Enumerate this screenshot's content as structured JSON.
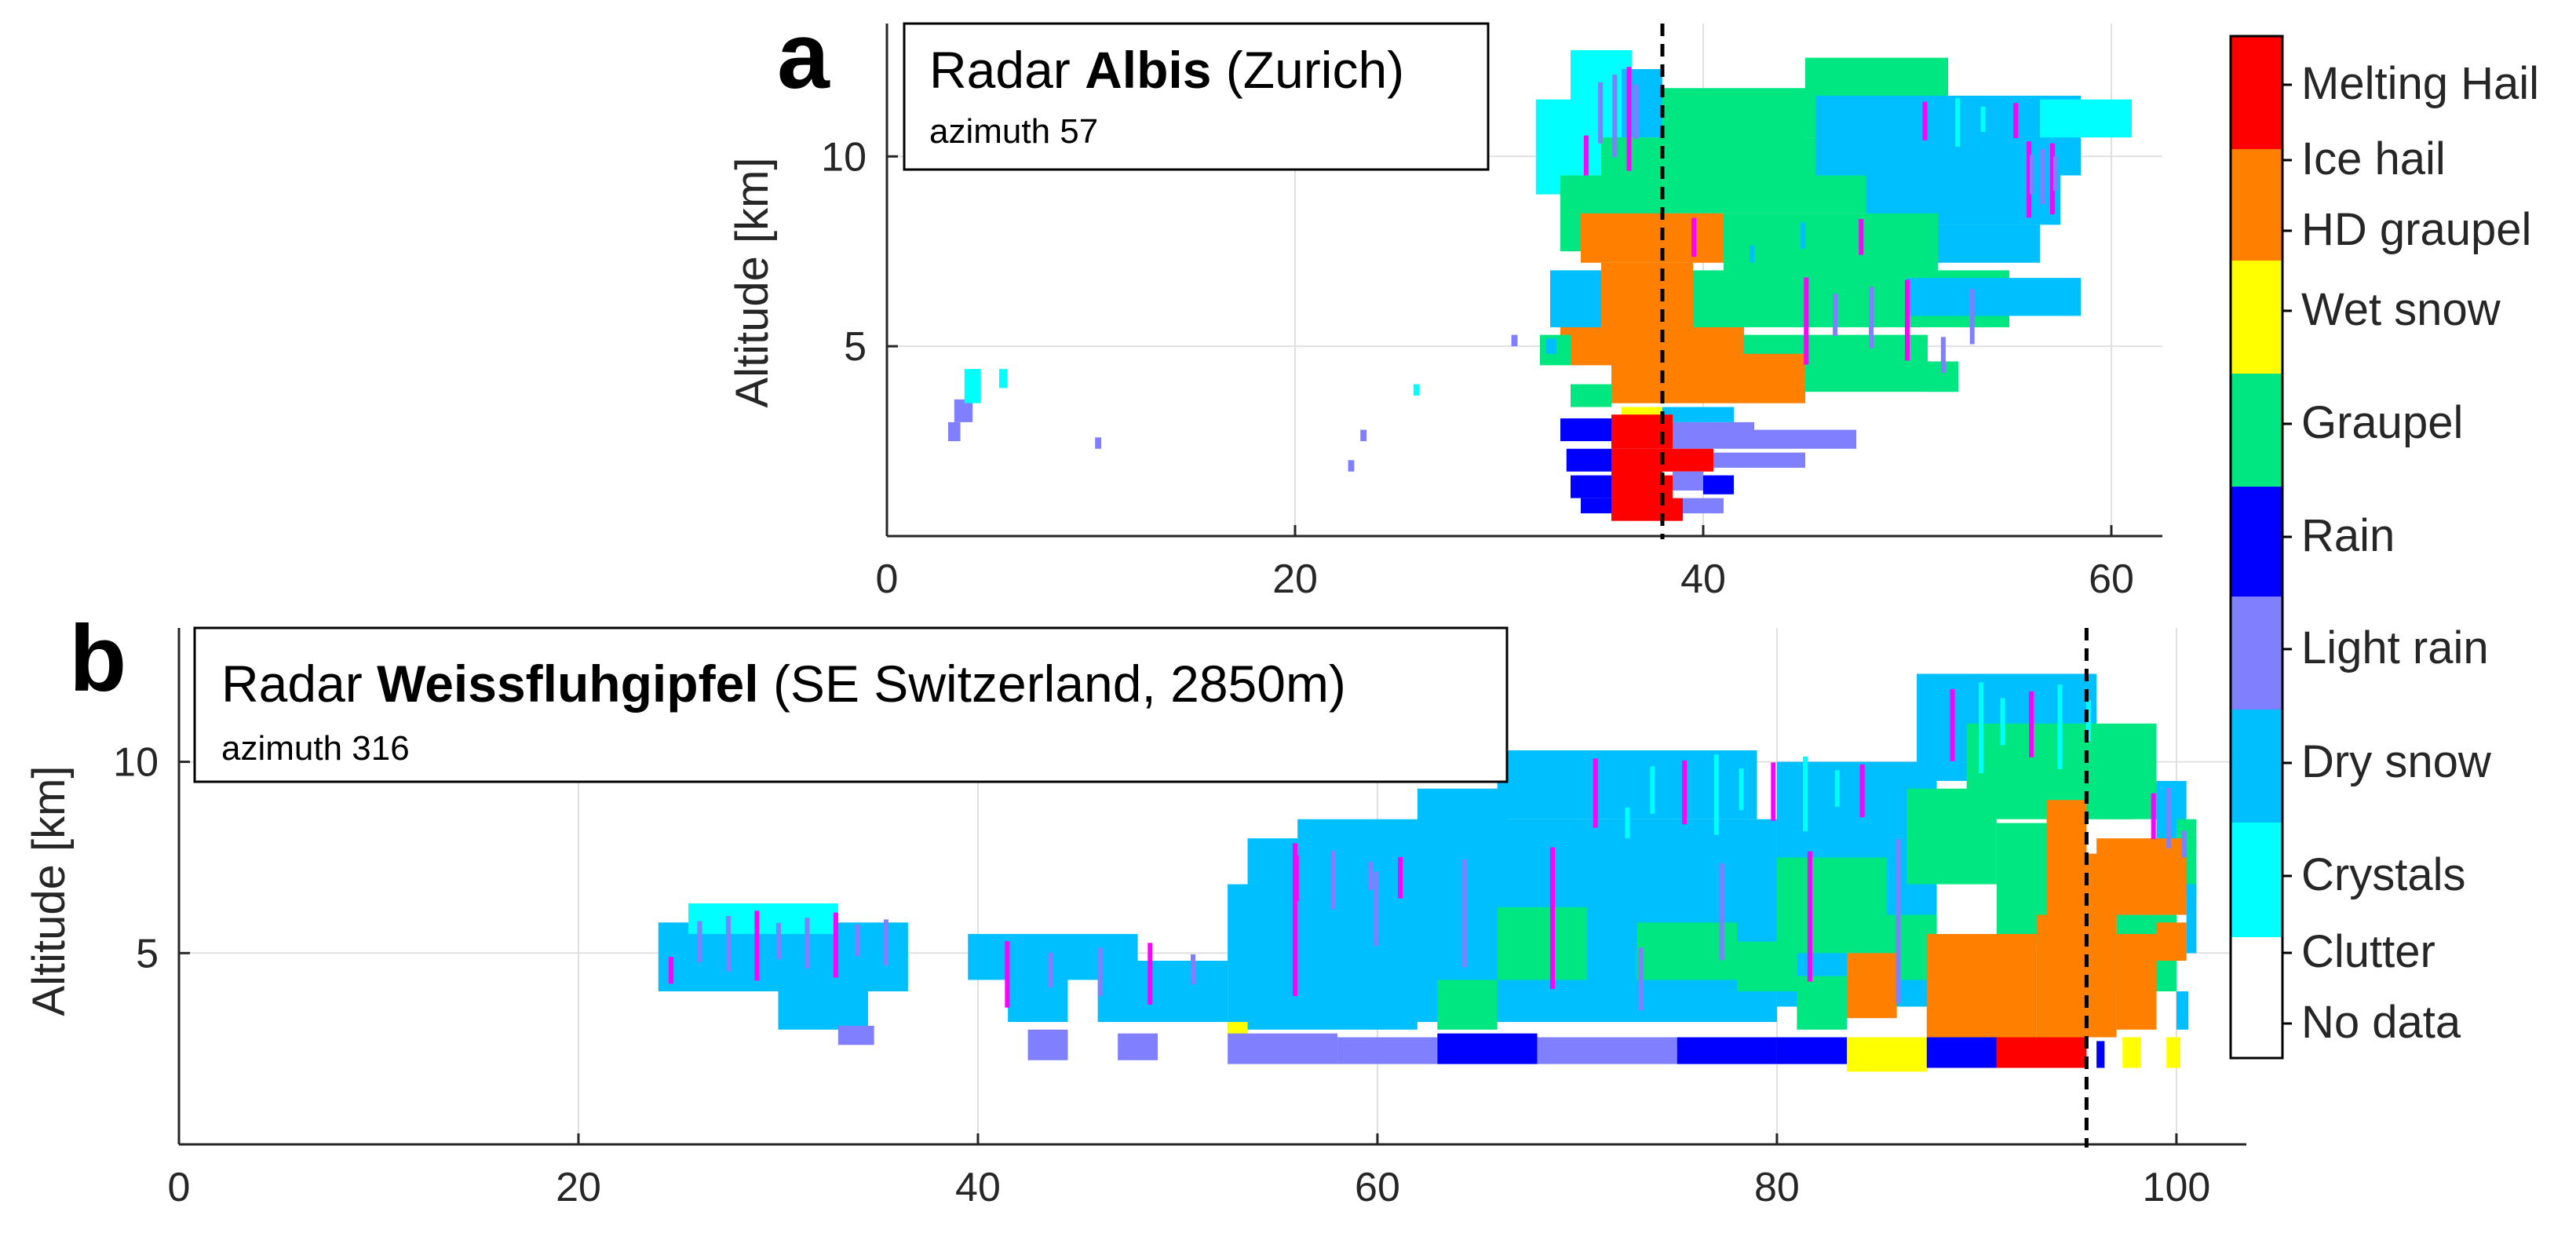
{
  "chart_data": [
    {
      "panel": "a",
      "type": "heatmap",
      "title_prefix": "Radar ",
      "title_bold": "Albis",
      "title_suffix": " (Zurich)",
      "subtitle": "azimuth 57",
      "ylabel": "Altitude [km]",
      "xlabel": "",
      "xlim": [
        0,
        62.5
      ],
      "ylim": [
        0,
        13.5
      ],
      "xticks": [
        0,
        20,
        40,
        60
      ],
      "yticks": [
        5,
        10
      ],
      "grid": true,
      "marker_line_x": 38,
      "cells": [
        {
          "x0": 31.8,
          "x1": 33.5,
          "y0": 9.0,
          "y1": 11.5,
          "cls": "Crystals"
        },
        {
          "x0": 33.5,
          "x1": 36.5,
          "y0": 9.5,
          "y1": 12.8,
          "cls": "Crystals"
        },
        {
          "x0": 36.0,
          "x1": 38.0,
          "y0": 10.5,
          "y1": 12.3,
          "cls": "Dry snow"
        },
        {
          "x0": 38.0,
          "x1": 45.0,
          "y0": 10.0,
          "y1": 11.8,
          "cls": "Graupel"
        },
        {
          "x0": 45.0,
          "x1": 52.0,
          "y0": 10.5,
          "y1": 12.6,
          "cls": "Graupel"
        },
        {
          "x0": 35.0,
          "x1": 48.0,
          "y0": 8.5,
          "y1": 10.5,
          "cls": "Graupel"
        },
        {
          "x0": 45.5,
          "x1": 58.5,
          "y0": 9.5,
          "y1": 11.6,
          "cls": "Dry snow"
        },
        {
          "x0": 56.5,
          "x1": 61.0,
          "y0": 10.5,
          "y1": 11.5,
          "cls": "Crystals"
        },
        {
          "x0": 48.0,
          "x1": 57.5,
          "y0": 8.2,
          "y1": 10.0,
          "cls": "Dry snow"
        },
        {
          "x0": 33.0,
          "x1": 38.0,
          "y0": 7.5,
          "y1": 9.5,
          "cls": "Graupel"
        },
        {
          "x0": 34.0,
          "x1": 41.0,
          "y0": 7.2,
          "y1": 8.5,
          "cls": "Ice hail"
        },
        {
          "x0": 41.0,
          "x1": 51.5,
          "y0": 6.8,
          "y1": 8.5,
          "cls": "Graupel"
        },
        {
          "x0": 51.5,
          "x1": 56.5,
          "y0": 7.2,
          "y1": 8.2,
          "cls": "Dry snow"
        },
        {
          "x0": 35.0,
          "x1": 39.5,
          "y0": 4.5,
          "y1": 7.2,
          "cls": "Ice hail"
        },
        {
          "x0": 39.5,
          "x1": 55.0,
          "y0": 5.5,
          "y1": 7.0,
          "cls": "Graupel"
        },
        {
          "x0": 50.0,
          "x1": 58.5,
          "y0": 5.8,
          "y1": 6.8,
          "cls": "Dry snow"
        },
        {
          "x0": 32.5,
          "x1": 35.0,
          "y0": 5.5,
          "y1": 7.0,
          "cls": "Dry snow"
        },
        {
          "x0": 33.0,
          "x1": 35.0,
          "y0": 4.5,
          "y1": 5.5,
          "cls": "Ice hail"
        },
        {
          "x0": 38.5,
          "x1": 42.0,
          "y0": 4.3,
          "y1": 5.5,
          "cls": "Ice hail"
        },
        {
          "x0": 42.0,
          "x1": 51.0,
          "y0": 4.3,
          "y1": 5.3,
          "cls": "Graupel"
        },
        {
          "x0": 51.0,
          "x1": 52.5,
          "y0": 3.8,
          "y1": 4.5,
          "cls": "Dry snow"
        },
        {
          "x0": 32.0,
          "x1": 33.5,
          "y0": 4.5,
          "y1": 5.3,
          "cls": "Graupel"
        },
        {
          "x0": 33.5,
          "x1": 35.5,
          "y0": 3.4,
          "y1": 4.0,
          "cls": "Graupel"
        },
        {
          "x0": 35.5,
          "x1": 45.0,
          "y0": 3.5,
          "y1": 4.8,
          "cls": "Ice hail"
        },
        {
          "x0": 45.0,
          "x1": 52.5,
          "y0": 3.8,
          "y1": 4.6,
          "cls": "Graupel"
        },
        {
          "x0": 36.0,
          "x1": 39.5,
          "y0": 3.0,
          "y1": 3.4,
          "cls": "Wet snow"
        },
        {
          "x0": 38.0,
          "x1": 41.5,
          "y0": 3.0,
          "y1": 3.4,
          "cls": "Dry snow"
        },
        {
          "x0": 33.0,
          "x1": 35.5,
          "y0": 2.5,
          "y1": 3.1,
          "cls": "Rain"
        },
        {
          "x0": 35.5,
          "x1": 38.5,
          "y0": 2.3,
          "y1": 3.2,
          "cls": "Melting Hail"
        },
        {
          "x0": 38.5,
          "x1": 42.5,
          "y0": 2.3,
          "y1": 3.0,
          "cls": "Light rain"
        },
        {
          "x0": 42.5,
          "x1": 47.5,
          "y0": 2.3,
          "y1": 2.8,
          "cls": "Light rain"
        },
        {
          "x0": 33.3,
          "x1": 35.5,
          "y0": 1.7,
          "y1": 2.3,
          "cls": "Rain"
        },
        {
          "x0": 35.5,
          "x1": 38.0,
          "y0": 1.5,
          "y1": 2.3,
          "cls": "Melting Hail"
        },
        {
          "x0": 38.0,
          "x1": 40.5,
          "y0": 1.7,
          "y1": 2.3,
          "cls": "Melting Hail"
        },
        {
          "x0": 40.5,
          "x1": 42.5,
          "y0": 1.8,
          "y1": 2.2,
          "cls": "Light rain"
        },
        {
          "x0": 42.5,
          "x1": 45.0,
          "y0": 1.8,
          "y1": 2.2,
          "cls": "Light rain"
        },
        {
          "x0": 33.5,
          "x1": 35.5,
          "y0": 1.0,
          "y1": 1.6,
          "cls": "Rain"
        },
        {
          "x0": 35.5,
          "x1": 38.5,
          "y0": 0.9,
          "y1": 1.6,
          "cls": "Melting Hail"
        },
        {
          "x0": 38.5,
          "x1": 40.0,
          "y0": 1.2,
          "y1": 1.7,
          "cls": "Light rain"
        },
        {
          "x0": 40.0,
          "x1": 41.5,
          "y0": 1.1,
          "y1": 1.6,
          "cls": "Rain"
        },
        {
          "x0": 34.0,
          "x1": 35.5,
          "y0": 0.6,
          "y1": 1.0,
          "cls": "Rain"
        },
        {
          "x0": 35.5,
          "x1": 39.0,
          "y0": 0.4,
          "y1": 1.0,
          "cls": "Melting Hail"
        },
        {
          "x0": 39.0,
          "x1": 41.0,
          "y0": 0.6,
          "y1": 1.0,
          "cls": "Light rain"
        },
        {
          "x0": 3.0,
          "x1": 3.6,
          "y0": 2.5,
          "y1": 3.0,
          "cls": "Light rain"
        },
        {
          "x0": 3.3,
          "x1": 4.2,
          "y0": 3.0,
          "y1": 3.6,
          "cls": "Light rain"
        },
        {
          "x0": 3.8,
          "x1": 4.6,
          "y0": 3.5,
          "y1": 4.4,
          "cls": "Crystals"
        },
        {
          "x0": 5.5,
          "x1": 5.9,
          "y0": 3.9,
          "y1": 4.4,
          "cls": "Crystals"
        },
        {
          "x0": 10.2,
          "x1": 10.5,
          "y0": 2.3,
          "y1": 2.6,
          "cls": "Light rain"
        },
        {
          "x0": 22.6,
          "x1": 22.9,
          "y0": 1.7,
          "y1": 2.0,
          "cls": "Light rain"
        },
        {
          "x0": 23.2,
          "x1": 23.5,
          "y0": 2.5,
          "y1": 2.8,
          "cls": "Light rain"
        },
        {
          "x0": 25.8,
          "x1": 26.1,
          "y0": 3.7,
          "y1": 4.0,
          "cls": "Crystals"
        },
        {
          "x0": 30.6,
          "x1": 30.9,
          "y0": 5.0,
          "y1": 5.3,
          "cls": "Light rain"
        },
        {
          "x0": 32.3,
          "x1": 32.8,
          "y0": 4.8,
          "y1": 5.2,
          "cls": "Dry snow"
        }
      ],
      "streaks": [
        {
          "x0": 34.0,
          "x1": 37.0,
          "y0": 9.5,
          "y1": 12.5,
          "n": 5,
          "cls": "Light rain"
        },
        {
          "x0": 55.5,
          "x1": 57.5,
          "y0": 8.3,
          "y1": 10.5,
          "n": 5,
          "cls": "Light rain"
        },
        {
          "x0": 44.0,
          "x1": 54.0,
          "y0": 4.3,
          "y1": 7.0,
          "n": 6,
          "cls": "Light rain"
        },
        {
          "x0": 38.0,
          "x1": 49.0,
          "y0": 7.2,
          "y1": 8.5,
          "n": 4,
          "cls": "Dry snow"
        },
        {
          "x0": 50.0,
          "x1": 56.0,
          "y0": 10.2,
          "y1": 11.6,
          "n": 4,
          "cls": "Crystals"
        }
      ]
    },
    {
      "panel": "b",
      "type": "heatmap",
      "title_prefix": "Radar ",
      "title_bold": "Weissfluhgipfel",
      "title_suffix": " (SE Switzerland, 2850m)",
      "subtitle": "azimuth 316",
      "ylabel": "Altitude [km]",
      "xlabel": "",
      "xlim": [
        0,
        103.5
      ],
      "ylim": [
        0,
        13.5
      ],
      "xticks": [
        0,
        20,
        40,
        60,
        80,
        100
      ],
      "yticks": [
        5,
        10
      ],
      "grid": true,
      "marker_line_x": 95.5,
      "cells": [
        {
          "x0": 24.0,
          "x1": 36.5,
          "y0": 4.0,
          "y1": 5.8,
          "cls": "Dry snow"
        },
        {
          "x0": 25.5,
          "x1": 33.0,
          "y0": 5.5,
          "y1": 6.3,
          "cls": "Crystals"
        },
        {
          "x0": 30.0,
          "x1": 34.5,
          "y0": 3.0,
          "y1": 4.3,
          "cls": "Dry snow"
        },
        {
          "x0": 33.0,
          "x1": 34.8,
          "y0": 2.6,
          "y1": 3.1,
          "cls": "Light rain"
        },
        {
          "x0": 39.5,
          "x1": 48.0,
          "y0": 4.3,
          "y1": 5.5,
          "cls": "Dry snow"
        },
        {
          "x0": 41.5,
          "x1": 44.5,
          "y0": 3.2,
          "y1": 4.5,
          "cls": "Dry snow"
        },
        {
          "x0": 42.5,
          "x1": 44.5,
          "y0": 2.2,
          "y1": 3.0,
          "cls": "Light rain"
        },
        {
          "x0": 46.0,
          "x1": 52.5,
          "y0": 3.2,
          "y1": 4.8,
          "cls": "Dry snow"
        },
        {
          "x0": 47.0,
          "x1": 49.0,
          "y0": 2.2,
          "y1": 2.9,
          "cls": "Light rain"
        },
        {
          "x0": 52.5,
          "x1": 62.0,
          "y0": 3.0,
          "y1": 6.8,
          "cls": "Dry snow"
        },
        {
          "x0": 56.0,
          "x1": 80.0,
          "y0": 3.2,
          "y1": 8.5,
          "cls": "Dry snow"
        },
        {
          "x0": 80.0,
          "x1": 88.0,
          "y0": 3.6,
          "y1": 10.0,
          "cls": "Dry snow"
        },
        {
          "x0": 87.0,
          "x1": 96.0,
          "y0": 9.5,
          "y1": 12.3,
          "cls": "Dry snow"
        },
        {
          "x0": 89.5,
          "x1": 99.0,
          "y0": 8.5,
          "y1": 11.0,
          "cls": "Graupel"
        },
        {
          "x0": 99.0,
          "x1": 100.5,
          "y0": 6.5,
          "y1": 9.5,
          "cls": "Dry snow"
        },
        {
          "x0": 53.5,
          "x1": 58.0,
          "y0": 6.5,
          "y1": 8.0,
          "cls": "Dry snow"
        },
        {
          "x0": 62.0,
          "x1": 66.5,
          "y0": 8.2,
          "y1": 9.3,
          "cls": "Dry snow"
        },
        {
          "x0": 66.0,
          "x1": 79.0,
          "y0": 8.5,
          "y1": 10.3,
          "cls": "Dry snow"
        },
        {
          "x0": 63.0,
          "x1": 66.0,
          "y0": 3.0,
          "y1": 4.3,
          "cls": "Graupel"
        },
        {
          "x0": 66.0,
          "x1": 70.5,
          "y0": 4.3,
          "y1": 6.2,
          "cls": "Graupel"
        },
        {
          "x0": 73.0,
          "x1": 78.0,
          "y0": 4.3,
          "y1": 5.8,
          "cls": "Graupel"
        },
        {
          "x0": 78.0,
          "x1": 81.0,
          "y0": 4.0,
          "y1": 5.3,
          "cls": "Graupel"
        },
        {
          "x0": 80.0,
          "x1": 85.5,
          "y0": 5.0,
          "y1": 7.5,
          "cls": "Graupel"
        },
        {
          "x0": 85.5,
          "x1": 88.0,
          "y0": 4.3,
          "y1": 6.0,
          "cls": "Graupel"
        },
        {
          "x0": 81.0,
          "x1": 83.5,
          "y0": 3.0,
          "y1": 4.4,
          "cls": "Graupel"
        },
        {
          "x0": 86.5,
          "x1": 91.0,
          "y0": 6.8,
          "y1": 9.3,
          "cls": "Graupel"
        },
        {
          "x0": 91.0,
          "x1": 93.5,
          "y0": 5.2,
          "y1": 8.4,
          "cls": "Graupel"
        },
        {
          "x0": 96.0,
          "x1": 97.8,
          "y0": 8.5,
          "y1": 9.2,
          "cls": "Graupel"
        },
        {
          "x0": 97.0,
          "x1": 100.0,
          "y0": 4.0,
          "y1": 6.0,
          "cls": "Graupel"
        },
        {
          "x0": 100.0,
          "x1": 101.0,
          "y0": 6.5,
          "y1": 8.5,
          "cls": "Graupel"
        },
        {
          "x0": 83.5,
          "x1": 86.0,
          "y0": 3.3,
          "y1": 5.0,
          "cls": "Ice hail"
        },
        {
          "x0": 87.5,
          "x1": 93.0,
          "y0": 2.8,
          "y1": 5.5,
          "cls": "Ice hail"
        },
        {
          "x0": 93.0,
          "x1": 95.5,
          "y0": 2.8,
          "y1": 6.0,
          "cls": "Ice hail"
        },
        {
          "x0": 93.5,
          "x1": 95.5,
          "y0": 6.0,
          "y1": 9.0,
          "cls": "Ice hail"
        },
        {
          "x0": 95.5,
          "x1": 97.0,
          "y0": 2.8,
          "y1": 7.6,
          "cls": "Ice hail"
        },
        {
          "x0": 97.0,
          "x1": 99.0,
          "y0": 3.0,
          "y1": 5.5,
          "cls": "Ice hail"
        },
        {
          "x0": 99.0,
          "x1": 100.5,
          "y0": 4.8,
          "y1": 5.8,
          "cls": "Ice hail"
        },
        {
          "x0": 96.0,
          "x1": 100.5,
          "y0": 6.0,
          "y1": 8.0,
          "cls": "Ice hail"
        },
        {
          "x0": 100.5,
          "x1": 101.0,
          "y0": 5.0,
          "y1": 6.8,
          "cls": "Dry snow"
        },
        {
          "x0": 52.5,
          "x1": 53.5,
          "y0": 2.8,
          "y1": 3.2,
          "cls": "Wet snow"
        },
        {
          "x0": 52.5,
          "x1": 58.0,
          "y0": 2.1,
          "y1": 2.9,
          "cls": "Light rain"
        },
        {
          "x0": 58.0,
          "x1": 63.0,
          "y0": 2.1,
          "y1": 2.8,
          "cls": "Light rain"
        },
        {
          "x0": 63.0,
          "x1": 68.0,
          "y0": 2.1,
          "y1": 2.9,
          "cls": "Rain"
        },
        {
          "x0": 68.0,
          "x1": 75.0,
          "y0": 2.1,
          "y1": 2.8,
          "cls": "Light rain"
        },
        {
          "x0": 75.0,
          "x1": 80.0,
          "y0": 2.1,
          "y1": 2.8,
          "cls": "Rain"
        },
        {
          "x0": 80.0,
          "x1": 83.5,
          "y0": 2.1,
          "y1": 2.8,
          "cls": "Rain"
        },
        {
          "x0": 83.5,
          "x1": 87.5,
          "y0": 1.9,
          "y1": 2.8,
          "cls": "Wet snow"
        },
        {
          "x0": 87.5,
          "x1": 91.0,
          "y0": 2.0,
          "y1": 2.8,
          "cls": "Rain"
        },
        {
          "x0": 91.0,
          "x1": 95.5,
          "y0": 2.0,
          "y1": 2.8,
          "cls": "Melting Hail"
        },
        {
          "x0": 96.0,
          "x1": 96.4,
          "y0": 2.0,
          "y1": 2.7,
          "cls": "Rain"
        },
        {
          "x0": 97.3,
          "x1": 98.2,
          "y0": 2.0,
          "y1": 2.8,
          "cls": "Wet snow"
        },
        {
          "x0": 99.5,
          "x1": 100.2,
          "y0": 2.0,
          "y1": 2.8,
          "cls": "Wet snow"
        },
        {
          "x0": 100.0,
          "x1": 100.6,
          "y0": 3.0,
          "y1": 4.0,
          "cls": "Dry snow"
        }
      ],
      "streaks": [
        {
          "x0": 24.0,
          "x1": 36.0,
          "y0": 4.2,
          "y1": 6.2,
          "n": 9,
          "cls": "Light rain"
        },
        {
          "x0": 40.0,
          "x1": 52.0,
          "y0": 3.5,
          "y1": 5.4,
          "n": 5,
          "cls": "Light rain"
        },
        {
          "x0": 53.5,
          "x1": 88.0,
          "y0": 3.5,
          "y1": 8.2,
          "n": 8,
          "cls": "Light rain"
        },
        {
          "x0": 70.0,
          "x1": 85.0,
          "y0": 8.0,
          "y1": 10.3,
          "n": 10,
          "cls": "Crystals"
        },
        {
          "x0": 88.0,
          "x1": 96.0,
          "y0": 9.6,
          "y1": 12.2,
          "n": 6,
          "cls": "Crystals"
        },
        {
          "x0": 55.0,
          "x1": 62.0,
          "y0": 6.0,
          "y1": 7.8,
          "n": 4,
          "cls": "Light rain"
        },
        {
          "x0": 98.5,
          "x1": 100.5,
          "y0": 7.5,
          "y1": 9.5,
          "n": 3,
          "cls": "Light rain"
        }
      ]
    }
  ],
  "panel_labels": [
    "a",
    "b"
  ],
  "legend": {
    "classes": [
      {
        "label": "Melting Hail",
        "color": "#ff0000"
      },
      {
        "label": "Ice hail",
        "color": "#ff8000"
      },
      {
        "label": "HD graupel",
        "color": "#ff8000"
      },
      {
        "label": "Wet snow",
        "color": "#ffff00"
      },
      {
        "label": "Graupel",
        "color": "#00e680"
      },
      {
        "label": "Rain",
        "color": "#0000ff"
      },
      {
        "label": "Light rain",
        "color": "#8080ff"
      },
      {
        "label": "Dry snow",
        "color": "#00bfff"
      },
      {
        "label": "Crystals",
        "color": "#00ffff"
      },
      {
        "label": "Clutter",
        "color": "#ffffff"
      },
      {
        "label": "No data",
        "color": "#ffffff"
      }
    ],
    "bar_bands": [
      {
        "cls": "Melting Hail",
        "color": "#ff0000"
      },
      {
        "cls": "Ice hail",
        "color": "#ff8000"
      },
      {
        "cls": "Wet snow",
        "color": "#ffff00"
      },
      {
        "cls": "Graupel",
        "color": "#00e680"
      },
      {
        "cls": "Rain",
        "color": "#0000ff"
      },
      {
        "cls": "Light rain",
        "color": "#8080ff"
      },
      {
        "cls": "Dry snow",
        "color": "#00bfff"
      },
      {
        "cls": "Crystals",
        "color": "#00ffff"
      },
      {
        "cls": "No data",
        "color": "#ffffff"
      }
    ]
  },
  "colors": {
    "Melting Hail": "#ff0000",
    "Ice hail": "#ff8000",
    "Wet snow": "#ffff00",
    "Graupel": "#00e680",
    "Rain": "#0000ff",
    "Light rain": "#8080ff",
    "Dry snow": "#00bfff",
    "Crystals": "#00ffff",
    "accent_streak": "#ff00ff",
    "axis": "#262626",
    "grid": "#e0e0e0",
    "tick_text": "#262626"
  }
}
